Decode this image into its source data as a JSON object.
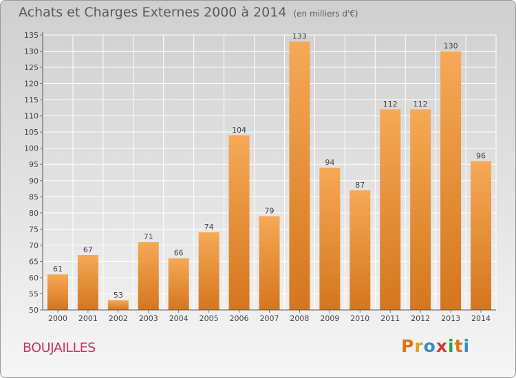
{
  "header": {
    "title": "Achats et Charges Externes 2000 à 2014",
    "unit": "(en milliers d'€)"
  },
  "footer": {
    "commune": "BOUJAILLES",
    "logo": "Proxiti",
    "logo_colors": [
      "#e8701a",
      "#e2a21c",
      "#2f8fd6",
      "#d23a3a",
      "#2aa64a",
      "#e8701a",
      "#2f8fd6"
    ]
  },
  "colors": {
    "bar_light": "#f6a956",
    "bar_dark": "#d4761e",
    "label": "#444444",
    "grid": "#ffffff"
  },
  "chart_data": {
    "type": "bar",
    "categories": [
      "2000",
      "2001",
      "2002",
      "2003",
      "2004",
      "2005",
      "2006",
      "2007",
      "2008",
      "2009",
      "2010",
      "2011",
      "2012",
      "2013",
      "2014"
    ],
    "values": [
      61,
      67,
      53,
      71,
      66,
      74,
      104,
      79,
      133,
      94,
      87,
      112,
      112,
      130,
      96
    ],
    "ylim": [
      50,
      135
    ],
    "yticks": [
      50,
      55,
      60,
      65,
      70,
      75,
      80,
      85,
      90,
      95,
      100,
      105,
      110,
      115,
      120,
      125,
      130,
      135
    ],
    "grid": true,
    "data_labels": true
  }
}
